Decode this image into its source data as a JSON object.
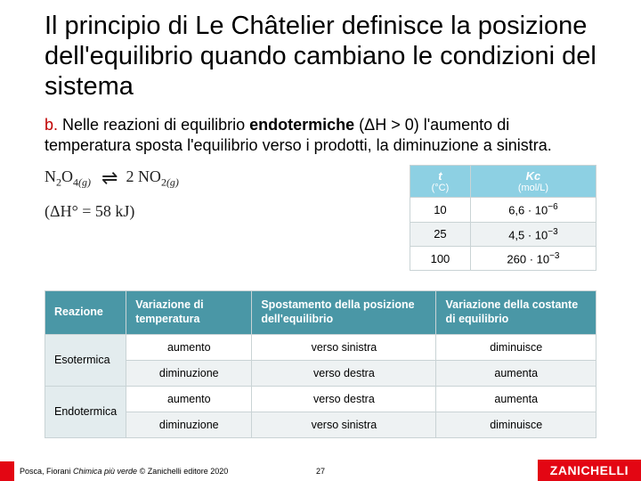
{
  "title": "Il principio di Le Châtelier definisce la posizione dell'equilibrio quando cambiano le condizioni del sistema",
  "subtitle": {
    "lead": "b.",
    "text_before_bold": " Nelle reazioni di equilibrio ",
    "bold": "endotermiche",
    "text_after_bold": " (ΔH > 0) l'aumento di temperatura sposta l'equilibrio verso i prodotti, la diminuzione a sinistra."
  },
  "reaction": {
    "left": "N₂O₄",
    "left_phase": "(g)",
    "right_coef": "2 NO₂",
    "right_phase": "(g)",
    "dh": "(ΔH° = 58 kJ)"
  },
  "kc_table": {
    "col1_header": "t",
    "col1_unit": "(°C)",
    "col2_header": "Kc",
    "col2_unit": "(mol/L)",
    "rows": [
      {
        "t": "10",
        "kc_base": "6,6",
        "kc_exp": "−6"
      },
      {
        "t": "25",
        "kc_base": "4,5",
        "kc_exp": "−3"
      },
      {
        "t": "100",
        "kc_base": "260",
        "kc_exp": "−3"
      }
    ]
  },
  "main_table": {
    "headers": [
      "Reazione",
      "Variazione di temperatura",
      "Spostamento della posizione dell'equilibrio",
      "Variazione della costante di equilibrio"
    ],
    "groups": [
      {
        "label": "Esotermica",
        "rows": [
          [
            "aumento",
            "verso sinistra",
            "diminuisce"
          ],
          [
            "diminuzione",
            "verso destra",
            "aumenta"
          ]
        ]
      },
      {
        "label": "Endotermica",
        "rows": [
          [
            "aumento",
            "verso destra",
            "aumenta"
          ],
          [
            "diminuzione",
            "verso sinistra",
            "diminuisce"
          ]
        ]
      }
    ]
  },
  "footer": {
    "credit_plain": "Posca, Fiorani ",
    "credit_italic": "Chimica più verde",
    "credit_tail": " © Zanichelli editore 2020",
    "page": "27",
    "logo": "ZANICHELLI"
  },
  "colors": {
    "accent_red": "#e30613",
    "th_teal": "#4a97a6",
    "th_light": "#8dd0e3",
    "row_alt": "#eef2f3",
    "rowhdr_bg": "#e3ecee"
  }
}
